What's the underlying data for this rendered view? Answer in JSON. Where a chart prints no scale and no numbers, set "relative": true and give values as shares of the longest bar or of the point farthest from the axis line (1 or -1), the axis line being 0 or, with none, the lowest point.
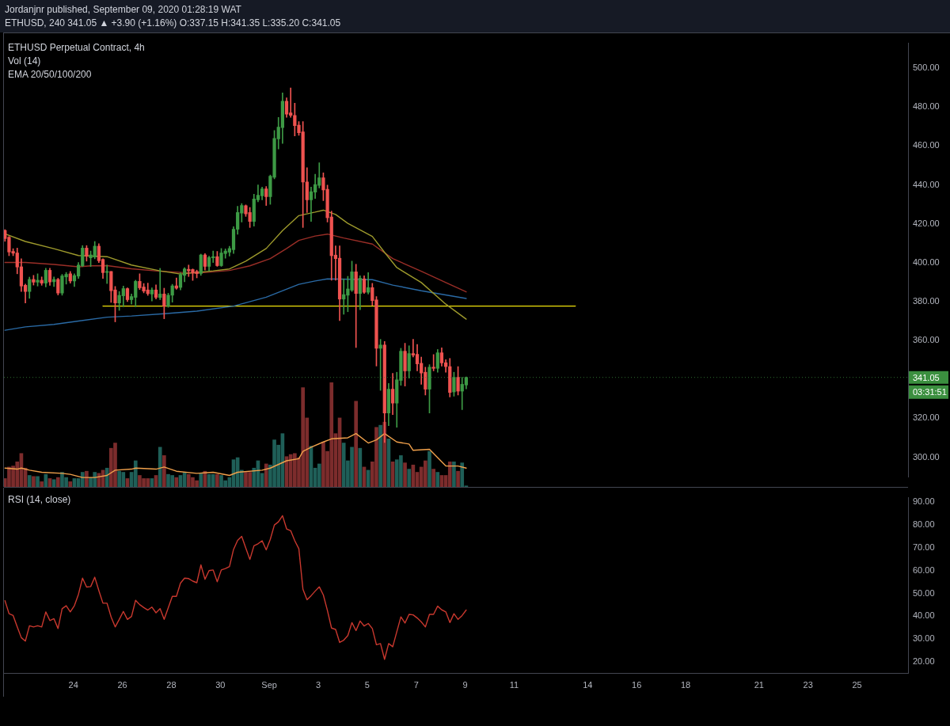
{
  "chart_data": [
    {
      "type": "candlestick",
      "title": "Jordanjnr published, September 09, 2020 01:28:19 WAT",
      "subtitle": "ETHUSD, 240 341.05 ▲ +3.90 (+1.16%) O:337.15 H:341.35 L:335.20 C:341.05",
      "x": [
        "2020-08-21T05:00",
        "2020-08-21T09:00",
        "2020-08-21T13:00",
        "2020-08-21T17:00",
        "2020-08-21T21:00",
        "2020-08-22T01:00",
        "2020-08-22T05:00",
        "2020-08-22T09:00",
        "2020-08-22T13:00",
        "2020-08-22T17:00",
        "2020-08-22T21:00",
        "2020-08-23T01:00",
        "2020-08-23T05:00",
        "2020-08-23T09:00",
        "2020-08-23T13:00",
        "2020-08-23T17:00",
        "2020-08-23T21:00",
        "2020-08-24T01:00",
        "2020-08-24T05:00",
        "2020-08-24T09:00",
        "2020-08-24T13:00",
        "2020-08-24T17:00",
        "2020-08-24T21:00",
        "2020-08-25T01:00",
        "2020-08-25T05:00",
        "2020-08-25T09:00",
        "2020-08-25T13:00",
        "2020-08-25T17:00",
        "2020-08-25T21:00",
        "2020-08-26T01:00",
        "2020-08-26T05:00",
        "2020-08-26T09:00",
        "2020-08-26T13:00",
        "2020-08-26T17:00",
        "2020-08-26T21:00",
        "2020-08-27T01:00",
        "2020-08-27T05:00",
        "2020-08-27T09:00",
        "2020-08-27T13:00",
        "2020-08-27T17:00",
        "2020-08-27T21:00",
        "2020-08-28T01:00",
        "2020-08-28T05:00",
        "2020-08-28T09:00",
        "2020-08-28T13:00",
        "2020-08-28T17:00",
        "2020-08-28T21:00",
        "2020-08-29T01:00",
        "2020-08-29T05:00",
        "2020-08-29T09:00",
        "2020-08-29T13:00",
        "2020-08-29T17:00",
        "2020-08-29T21:00",
        "2020-08-30T01:00",
        "2020-08-30T05:00",
        "2020-08-30T09:00",
        "2020-08-30T13:00",
        "2020-08-30T17:00",
        "2020-08-30T21:00",
        "2020-08-31T01:00",
        "2020-08-31T05:00",
        "2020-08-31T09:00",
        "2020-08-31T13:00",
        "2020-08-31T17:00",
        "2020-08-31T21:00",
        "2020-09-01T01:00",
        "2020-09-01T05:00",
        "2020-09-01T09:00",
        "2020-09-01T13:00",
        "2020-09-01T17:00",
        "2020-09-01T21:00",
        "2020-09-02T01:00",
        "2020-09-02T05:00",
        "2020-09-02T09:00",
        "2020-09-02T13:00",
        "2020-09-02T17:00",
        "2020-09-02T21:00",
        "2020-09-03T01:00",
        "2020-09-03T05:00",
        "2020-09-03T09:00",
        "2020-09-03T13:00",
        "2020-09-03T17:00",
        "2020-09-03T21:00",
        "2020-09-04T01:00",
        "2020-09-04T05:00",
        "2020-09-04T09:00",
        "2020-09-04T13:00",
        "2020-09-04T17:00",
        "2020-09-04T21:00",
        "2020-09-05T01:00",
        "2020-09-05T05:00",
        "2020-09-05T09:00",
        "2020-09-05T13:00",
        "2020-09-05T17:00",
        "2020-09-05T21:00",
        "2020-09-06T01:00",
        "2020-09-06T05:00",
        "2020-09-06T09:00",
        "2020-09-06T13:00",
        "2020-09-06T17:00",
        "2020-09-06T21:00",
        "2020-09-07T01:00",
        "2020-09-07T05:00",
        "2020-09-07T09:00",
        "2020-09-07T13:00",
        "2020-09-07T17:00",
        "2020-09-07T21:00",
        "2020-09-08T01:00",
        "2020-09-08T05:00",
        "2020-09-08T09:00",
        "2020-09-08T13:00",
        "2020-09-08T17:00",
        "2020-09-08T21:00",
        "2020-09-09T01:00"
      ],
      "ohlc": [
        [
          416.6,
          417.0,
          411.0,
          412.4
        ],
        [
          413.1,
          413.5,
          403.6,
          405.5
        ],
        [
          405.8,
          407.2,
          403.6,
          404.9
        ],
        [
          405.0,
          407.5,
          394.3,
          397.8
        ],
        [
          397.9,
          402.0,
          385.2,
          388.0
        ],
        [
          388.4,
          389.0,
          379.3,
          385.2
        ],
        [
          385.2,
          392.6,
          381.7,
          391.4
        ],
        [
          391.4,
          393.5,
          388.5,
          390.0
        ],
        [
          390.0,
          394.3,
          388.0,
          391.0
        ],
        [
          391.0,
          392.7,
          388.4,
          389.5
        ],
        [
          389.5,
          397.1,
          387.5,
          396.1
        ],
        [
          396.1,
          397.1,
          388.4,
          390.1
        ],
        [
          390.2,
          392.7,
          387.8,
          391.4
        ],
        [
          391.4,
          392.0,
          383.4,
          384.4
        ],
        [
          384.4,
          394.0,
          383.3,
          393.2
        ],
        [
          392.7,
          395.0,
          389.0,
          394.0
        ],
        [
          394.3,
          395.5,
          389.5,
          390.6
        ],
        [
          390.6,
          394.3,
          387.8,
          393.4
        ],
        [
          393.1,
          400.1,
          391.9,
          398.8
        ],
        [
          398.4,
          408.8,
          398.0,
          407.5
        ],
        [
          407.5,
          408.8,
          400.8,
          403.3
        ],
        [
          402.5,
          406.0,
          398.0,
          404.0
        ],
        [
          402.9,
          410.9,
          402.0,
          408.5
        ],
        [
          408.5,
          409.8,
          400.1,
          401.0
        ],
        [
          401.7,
          402.0,
          391.9,
          394.9
        ],
        [
          395.0,
          398.8,
          389.3,
          395.5
        ],
        [
          395.5,
          395.5,
          379.6,
          385.6
        ],
        [
          386.0,
          387.8,
          369.6,
          379.3
        ],
        [
          379.3,
          385.2,
          375.5,
          383.2
        ],
        [
          383.0,
          388.0,
          377.4,
          386.7
        ],
        [
          386.7,
          387.1,
          380.0,
          381.0
        ],
        [
          381.0,
          383.9,
          378.7,
          382.6
        ],
        [
          382.2,
          391.0,
          377.4,
          390.4
        ],
        [
          390.4,
          394.3,
          386.2,
          387.1
        ],
        [
          387.5,
          389.3,
          384.5,
          385.4
        ],
        [
          386.0,
          389.5,
          383.2,
          384.1
        ],
        [
          383.9,
          387.1,
          380.3,
          386.0
        ],
        [
          386.0,
          388.6,
          381.3,
          382.2
        ],
        [
          382.1,
          397.1,
          381.0,
          383.9
        ],
        [
          383.9,
          386.9,
          371.2,
          377.7
        ],
        [
          377.7,
          384.3,
          377.1,
          383.3
        ],
        [
          383.3,
          388.9,
          379.7,
          388.1
        ],
        [
          388.1,
          392.2,
          386.3,
          386.9
        ],
        [
          387.3,
          394.8,
          386.0,
          393.8
        ],
        [
          393.5,
          397.5,
          390.2,
          396.8
        ],
        [
          396.6,
          398.8,
          392.9,
          395.8
        ],
        [
          396.5,
          396.8,
          390.9,
          394.8
        ],
        [
          395.5,
          396.2,
          392.2,
          394.4
        ],
        [
          394.5,
          404.4,
          393.5,
          404.0
        ],
        [
          404.0,
          404.7,
          396.2,
          398.1
        ],
        [
          398.1,
          403.4,
          395.8,
          402.7
        ],
        [
          402.5,
          406.0,
          400.1,
          403.1
        ],
        [
          403.1,
          405.8,
          398.1,
          398.5
        ],
        [
          398.5,
          407.3,
          398.1,
          405.0
        ],
        [
          404.7,
          407.1,
          402.3,
          406.0
        ],
        [
          405.4,
          408.4,
          403.4,
          407.3
        ],
        [
          406.7,
          418.5,
          404.7,
          417.2
        ],
        [
          417.2,
          429.0,
          414.6,
          425.8
        ],
        [
          425.5,
          430.4,
          420.9,
          429.4
        ],
        [
          429.3,
          429.7,
          423.8,
          425.1
        ],
        [
          425.8,
          428.4,
          418.1,
          421.2
        ],
        [
          421.2,
          435.2,
          418.8,
          432.7
        ],
        [
          432.3,
          440.0,
          431.3,
          434.7
        ],
        [
          434.3,
          438.9,
          432.3,
          437.9
        ],
        [
          437.9,
          439.2,
          429.4,
          433.9
        ],
        [
          433.9,
          445.1,
          430.0,
          444.4
        ],
        [
          443.9,
          467.9,
          443.1,
          463.9
        ],
        [
          463.6,
          474.7,
          458.4,
          469.7
        ],
        [
          469.4,
          487.3,
          461.3,
          483.0
        ],
        [
          483.0,
          484.7,
          474.7,
          476.4
        ],
        [
          477.0,
          489.8,
          474.7,
          475.7
        ],
        [
          475.7,
          482.0,
          465.2,
          470.5
        ],
        [
          470.7,
          472.5,
          465.5,
          466.8
        ],
        [
          467.2,
          472.5,
          418.1,
          441.5
        ],
        [
          441.5,
          448.8,
          425.8,
          432.3
        ],
        [
          432.3,
          438.9,
          421.2,
          436.5
        ],
        [
          436.3,
          445.5,
          433.0,
          440.2
        ],
        [
          439.7,
          451.4,
          438.4,
          443.6
        ],
        [
          443.6,
          446.2,
          431.9,
          437.4
        ],
        [
          437.7,
          439.9,
          420.9,
          423.1
        ],
        [
          423.5,
          426.5,
          391.0,
          403.6
        ],
        [
          403.9,
          408.6,
          391.0,
          402.1
        ],
        [
          402.3,
          408.6,
          370.3,
          381.3
        ],
        [
          381.3,
          391.7,
          373.5,
          383.6
        ],
        [
          383.3,
          393.0,
          374.8,
          386.5
        ],
        [
          385.9,
          400.8,
          385.2,
          395.3
        ],
        [
          395.3,
          399.2,
          356.4,
          384.2
        ],
        [
          384.2,
          393.3,
          375.9,
          392.0
        ],
        [
          391.7,
          393.3,
          384.2,
          384.8
        ],
        [
          384.8,
          394.9,
          383.9,
          387.2
        ],
        [
          387.2,
          389.4,
          378.1,
          380.5
        ],
        [
          380.9,
          382.6,
          346.9,
          356.0
        ],
        [
          356.0,
          360.6,
          334.4,
          357.7
        ],
        [
          357.7,
          359.5,
          307.6,
          322.7
        ],
        [
          322.7,
          337.9,
          316.2,
          335.0
        ],
        [
          335.0,
          343.1,
          321.9,
          327.8
        ],
        [
          327.8,
          343.7,
          315.4,
          339.8
        ],
        [
          339.5,
          356.0,
          337.0,
          354.5
        ],
        [
          354.5,
          358.6,
          336.6,
          344.4
        ],
        [
          344.4,
          357.3,
          340.7,
          353.3
        ],
        [
          353.3,
          360.6,
          351.5,
          352.5
        ],
        [
          352.9,
          358.0,
          344.4,
          348.0
        ],
        [
          348.3,
          351.5,
          337.5,
          343.3
        ],
        [
          343.7,
          346.3,
          332.0,
          335.0
        ],
        [
          335.0,
          347.6,
          322.7,
          346.3
        ],
        [
          346.3,
          352.8,
          344.4,
          345.7
        ],
        [
          345.7,
          355.4,
          343.7,
          353.7
        ],
        [
          353.7,
          356.3,
          346.9,
          348.5
        ],
        [
          348.6,
          350.2,
          343.7,
          346.6
        ],
        [
          346.6,
          350.8,
          331.0,
          333.3
        ],
        [
          333.6,
          343.7,
          331.4,
          341.1
        ],
        [
          341.1,
          346.6,
          332.0,
          334.0
        ],
        [
          334.0,
          341.1,
          324.5,
          337.5
        ],
        [
          337.15,
          341.35,
          335.2,
          341.05
        ]
      ],
      "colors": [
        "#ef5350",
        "#ef5350",
        "#ef5350",
        "#ef5350",
        "#ef5350",
        "#ef5350",
        "#3d9a45",
        "#ef5350",
        "#3d9a45",
        "#ef5350",
        "#3d9a45",
        "#ef5350",
        "#3d9a45",
        "#ef5350",
        "#3d9a45",
        "#3d9a45",
        "#ef5350",
        "#3d9a45",
        "#3d9a45",
        "#3d9a45",
        "#ef5350",
        "#3d9a45",
        "#3d9a45",
        "#ef5350",
        "#ef5350",
        "#3d9a45",
        "#ef5350",
        "#ef5350",
        "#3d9a45",
        "#3d9a45",
        "#ef5350",
        "#3d9a45",
        "#3d9a45",
        "#ef5350",
        "#ef5350",
        "#ef5350",
        "#3d9a45",
        "#ef5350",
        "#3d9a45",
        "#ef5350",
        "#3d9a45",
        "#3d9a45",
        "#ef5350",
        "#3d9a45",
        "#3d9a45",
        "#ef5350",
        "#ef5350",
        "#ef5350",
        "#3d9a45",
        "#ef5350",
        "#3d9a45",
        "#3d9a45",
        "#ef5350",
        "#3d9a45",
        "#3d9a45",
        "#3d9a45",
        "#3d9a45",
        "#3d9a45",
        "#3d9a45",
        "#ef5350",
        "#ef5350",
        "#3d9a45",
        "#3d9a45",
        "#3d9a45",
        "#ef5350",
        "#3d9a45",
        "#3d9a45",
        "#3d9a45",
        "#3d9a45",
        "#ef5350",
        "#ef5350",
        "#ef5350",
        "#ef5350",
        "#ef5350",
        "#ef5350",
        "#3d9a45",
        "#3d9a45",
        "#3d9a45",
        "#ef5350",
        "#ef5350",
        "#ef5350",
        "#ef5350",
        "#ef5350",
        "#3d9a45",
        "#3d9a45",
        "#3d9a45",
        "#ef5350",
        "#3d9a45",
        "#ef5350",
        "#3d9a45",
        "#ef5350",
        "#ef5350",
        "#3d9a45",
        "#ef5350",
        "#3d9a45",
        "#ef5350",
        "#3d9a45",
        "#3d9a45",
        "#ef5350",
        "#3d9a45",
        "#ef5350",
        "#ef5350",
        "#ef5350",
        "#ef5350",
        "#3d9a45",
        "#ef5350",
        "#3d9a45",
        "#ef5350",
        "#ef5350",
        "#ef5350",
        "#3d9a45",
        "#ef5350",
        "#3d9a45",
        "#3d9a45"
      ],
      "series": [
        {
          "type": "line",
          "color": "#9e9a2c",
          "x": [
            "2020-08-21T05:00",
            "2020-08-22T01:00",
            "2020-08-23T05:00",
            "2020-08-24T05:00",
            "2020-08-25T09:00",
            "2020-08-26T09:00",
            "2020-08-27T13:00",
            "2020-08-28T09:00",
            "2020-08-29T17:00",
            "2020-08-30T09:00",
            "2020-08-31T01:00",
            "2020-08-31T21:00",
            "2020-09-01T13:00",
            "2020-09-02T05:00",
            "2020-09-02T21:00",
            "2020-09-03T05:00",
            "2020-09-03T17:00",
            "2020-09-04T05:00",
            "2020-09-05T05:00",
            "2020-09-05T17:00",
            "2020-09-06T05:00",
            "2020-09-07T05:00",
            "2020-09-08T05:00",
            "2020-09-09T01:00"
          ],
          "values": [
            414.8,
            410.9,
            407.2,
            403.7,
            403.1,
            398.8,
            395.8,
            394.2,
            395.8,
            396.8,
            400.8,
            407.3,
            416.5,
            424.2,
            426.0,
            427.0,
            424.8,
            420.2,
            413.5,
            405.3,
            397.5,
            389.8,
            378.7,
            371.0
          ]
        },
        {
          "type": "line",
          "color": "#9a2e27",
          "x": [
            "2020-08-21T05:00",
            "2020-08-22T01:00",
            "2020-08-23T05:00",
            "2020-08-24T05:00",
            "2020-08-24T17:00",
            "2020-08-25T09:00",
            "2020-08-26T09:00",
            "2020-08-27T13:00",
            "2020-08-29T01:00",
            "2020-08-30T09:00",
            "2020-08-31T05:00",
            "2020-09-01T01:00",
            "2020-09-01T17:00",
            "2020-09-02T05:00",
            "2020-09-02T21:00",
            "2020-09-03T09:00",
            "2020-09-04T01:00",
            "2020-09-05T05:00",
            "2020-09-06T01:00",
            "2020-09-07T05:00",
            "2020-09-08T05:00",
            "2020-09-09T01:00"
          ],
          "values": [
            400.1,
            400.1,
            399.1,
            397.9,
            398.4,
            398.5,
            396.9,
            395.6,
            394.6,
            396.0,
            398.4,
            402.1,
            407.3,
            411.5,
            413.7,
            414.7,
            412.7,
            409.6,
            402.1,
            395.6,
            389.8,
            385.0
          ]
        },
        {
          "type": "line",
          "color": "#2a6aa5",
          "x": [
            "2020-08-21T05:00",
            "2020-08-22T01:00",
            "2020-08-23T05:00",
            "2020-08-24T05:00",
            "2020-08-25T09:00",
            "2020-08-26T09:00",
            "2020-08-27T17:00",
            "2020-08-29T01:00",
            "2020-08-30T13:00",
            "2020-08-31T21:00",
            "2020-09-02T05:00",
            "2020-09-02T21:00",
            "2020-09-03T09:00",
            "2020-09-05T05:00",
            "2020-09-06T01:00",
            "2020-09-07T05:00",
            "2020-09-09T01:00"
          ],
          "values": [
            365.3,
            367.0,
            368.3,
            370.0,
            372.0,
            372.6,
            373.8,
            375.1,
            377.7,
            382.3,
            388.9,
            390.6,
            391.7,
            391.3,
            388.5,
            385.6,
            381.6
          ]
        },
        {
          "type": "line",
          "color": "#f0e20a",
          "x": [
            "2020-08-25T05:00",
            "2020-09-13T12:00"
          ],
          "values": [
            377.7,
            377.7
          ]
        }
      ],
      "xlim": [
        "2020-08-21T04:00",
        "2020-09-27T02:00"
      ],
      "ylim": [
        289.9,
        512.8
      ],
      "yticks": [
        {
          "value": 300,
          "label": "300.00"
        },
        {
          "value": 320,
          "label": "320.00"
        },
        {
          "value": 360,
          "label": "360.00"
        },
        {
          "value": 380,
          "label": "380.00"
        },
        {
          "value": 400,
          "label": "400.00"
        },
        {
          "value": 420,
          "label": "420.00"
        },
        {
          "value": 440,
          "label": "440.00"
        },
        {
          "value": 460,
          "label": "460.00"
        },
        {
          "value": 480,
          "label": "480.00"
        },
        {
          "value": 500,
          "label": "500.00"
        }
      ],
      "ref_lines": [
        {
          "axis": "y",
          "value": 341.05,
          "label": "341.05",
          "color": "#3b8f3f",
          "line_style": "dotted"
        }
      ],
      "annotations": [
        "ETHUSD Perpetual Contract, 4h",
        "EMA 20/50/100/200",
        "03:31:51"
      ],
      "tick_labels": "y"
    },
    {
      "type": "bar",
      "title": "Vol (14)",
      "relative": true,
      "x": [
        "2020-08-21T05:00",
        "2020-08-21T09:00",
        "2020-08-21T13:00",
        "2020-08-21T17:00",
        "2020-08-21T21:00",
        "2020-08-22T01:00",
        "2020-08-22T05:00",
        "2020-08-22T09:00",
        "2020-08-22T13:00",
        "2020-08-22T17:00",
        "2020-08-22T21:00",
        "2020-08-23T01:00",
        "2020-08-23T05:00",
        "2020-08-23T09:00",
        "2020-08-23T13:00",
        "2020-08-23T17:00",
        "2020-08-23T21:00",
        "2020-08-24T01:00",
        "2020-08-24T05:00",
        "2020-08-24T09:00",
        "2020-08-24T13:00",
        "2020-08-24T17:00",
        "2020-08-24T21:00",
        "2020-08-25T01:00",
        "2020-08-25T05:00",
        "2020-08-25T09:00",
        "2020-08-25T13:00",
        "2020-08-25T17:00",
        "2020-08-25T21:00",
        "2020-08-26T01:00",
        "2020-08-26T05:00",
        "2020-08-26T09:00",
        "2020-08-26T13:00",
        "2020-08-26T17:00",
        "2020-08-26T21:00",
        "2020-08-27T01:00",
        "2020-08-27T05:00",
        "2020-08-27T09:00",
        "2020-08-27T13:00",
        "2020-08-27T17:00",
        "2020-08-27T21:00",
        "2020-08-28T01:00",
        "2020-08-28T05:00",
        "2020-08-28T09:00",
        "2020-08-28T13:00",
        "2020-08-28T17:00",
        "2020-08-28T21:00",
        "2020-08-29T01:00",
        "2020-08-29T05:00",
        "2020-08-29T09:00",
        "2020-08-29T13:00",
        "2020-08-29T17:00",
        "2020-08-29T21:00",
        "2020-08-30T01:00",
        "2020-08-30T05:00",
        "2020-08-30T09:00",
        "2020-08-30T13:00",
        "2020-08-30T17:00",
        "2020-08-30T21:00",
        "2020-08-31T01:00",
        "2020-08-31T05:00",
        "2020-08-31T09:00",
        "2020-08-31T13:00",
        "2020-08-31T17:00",
        "2020-08-31T21:00",
        "2020-09-01T01:00",
        "2020-09-01T05:00",
        "2020-09-01T09:00",
        "2020-09-01T13:00",
        "2020-09-01T17:00",
        "2020-09-01T21:00",
        "2020-09-02T01:00",
        "2020-09-02T05:00",
        "2020-09-02T09:00",
        "2020-09-02T13:00",
        "2020-09-02T17:00",
        "2020-09-02T21:00",
        "2020-09-03T01:00",
        "2020-09-03T05:00",
        "2020-09-03T09:00",
        "2020-09-03T13:00",
        "2020-09-03T17:00",
        "2020-09-03T21:00",
        "2020-09-04T01:00",
        "2020-09-04T05:00",
        "2020-09-04T09:00",
        "2020-09-04T13:00",
        "2020-09-04T17:00",
        "2020-09-04T21:00",
        "2020-09-05T01:00",
        "2020-09-05T05:00",
        "2020-09-05T09:00",
        "2020-09-05T13:00",
        "2020-09-05T17:00",
        "2020-09-05T21:00",
        "2020-09-06T01:00",
        "2020-09-06T05:00",
        "2020-09-06T09:00",
        "2020-09-06T13:00",
        "2020-09-06T17:00",
        "2020-09-06T21:00",
        "2020-09-07T01:00",
        "2020-09-07T05:00",
        "2020-09-07T09:00",
        "2020-09-07T13:00",
        "2020-09-07T17:00",
        "2020-09-07T21:00",
        "2020-09-08T01:00",
        "2020-09-08T05:00",
        "2020-09-08T09:00",
        "2020-09-08T13:00",
        "2020-09-08T17:00",
        "2020-09-08T21:00",
        "2020-09-09T01:00"
      ],
      "series": [
        {
          "values": [
            0.08,
            0.19,
            0.2,
            0.24,
            0.32,
            0.18,
            0.11,
            0.1,
            0.1,
            0.05,
            0.12,
            0.08,
            0.07,
            0.09,
            0.14,
            0.09,
            0.05,
            0.08,
            0.08,
            0.14,
            0.15,
            0.09,
            0.14,
            0.13,
            0.16,
            0.18,
            0.37,
            0.42,
            0.15,
            0.14,
            0.08,
            0.14,
            0.25,
            0.11,
            0.08,
            0.08,
            0.08,
            0.11,
            0.38,
            0.3,
            0.12,
            0.11,
            0.09,
            0.11,
            0.14,
            0.12,
            0.09,
            0.06,
            0.13,
            0.15,
            0.12,
            0.12,
            0.12,
            0.11,
            0.06,
            0.09,
            0.26,
            0.28,
            0.16,
            0.14,
            0.14,
            0.18,
            0.25,
            0.13,
            0.22,
            0.21,
            0.45,
            0.4,
            0.51,
            0.29,
            0.31,
            0.32,
            0.28,
            0.95,
            0.66,
            0.39,
            0.18,
            0.22,
            0.43,
            0.34,
            1,
            0.51,
            0.66,
            0.42,
            0.25,
            0.38,
            0.82,
            0.37,
            0.19,
            0.16,
            0.24,
            0.57,
            0.59,
            0.62,
            0.46,
            0.24,
            0.26,
            0.3,
            0.23,
            0.17,
            0.21,
            0.14,
            0.19,
            0.25,
            0.34,
            0.17,
            0.14,
            0.11,
            0.11,
            0.24,
            0.24,
            0.15,
            0.23,
            0.01
          ],
          "colors": [
            "#7c2c2c",
            "#7c2c2c",
            "#7c2c2c",
            "#7c2c2c",
            "#7c2c2c",
            "#7c2c2c",
            "#1f5f58",
            "#7c2c2c",
            "#1f5f58",
            "#7c2c2c",
            "#1f5f58",
            "#7c2c2c",
            "#1f5f58",
            "#7c2c2c",
            "#1f5f58",
            "#1f5f58",
            "#7c2c2c",
            "#1f5f58",
            "#1f5f58",
            "#1f5f58",
            "#7c2c2c",
            "#1f5f58",
            "#1f5f58",
            "#7c2c2c",
            "#7c2c2c",
            "#1f5f58",
            "#7c2c2c",
            "#7c2c2c",
            "#1f5f58",
            "#1f5f58",
            "#7c2c2c",
            "#1f5f58",
            "#1f5f58",
            "#7c2c2c",
            "#7c2c2c",
            "#7c2c2c",
            "#1f5f58",
            "#7c2c2c",
            "#1f5f58",
            "#7c2c2c",
            "#1f5f58",
            "#1f5f58",
            "#7c2c2c",
            "#1f5f58",
            "#1f5f58",
            "#7c2c2c",
            "#7c2c2c",
            "#7c2c2c",
            "#1f5f58",
            "#7c2c2c",
            "#1f5f58",
            "#1f5f58",
            "#7c2c2c",
            "#1f5f58",
            "#1f5f58",
            "#1f5f58",
            "#1f5f58",
            "#1f5f58",
            "#1f5f58",
            "#7c2c2c",
            "#7c2c2c",
            "#1f5f58",
            "#1f5f58",
            "#1f5f58",
            "#7c2c2c",
            "#1f5f58",
            "#1f5f58",
            "#1f5f58",
            "#1f5f58",
            "#7c2c2c",
            "#7c2c2c",
            "#7c2c2c",
            "#7c2c2c",
            "#7c2c2c",
            "#7c2c2c",
            "#1f5f58",
            "#1f5f58",
            "#1f5f58",
            "#7c2c2c",
            "#7c2c2c",
            "#7c2c2c",
            "#7c2c2c",
            "#7c2c2c",
            "#1f5f58",
            "#1f5f58",
            "#1f5f58",
            "#7c2c2c",
            "#1f5f58",
            "#7c2c2c",
            "#1f5f58",
            "#7c2c2c",
            "#7c2c2c",
            "#1f5f58",
            "#7c2c2c",
            "#1f5f58",
            "#7c2c2c",
            "#1f5f58",
            "#1f5f58",
            "#7c2c2c",
            "#1f5f58",
            "#7c2c2c",
            "#7c2c2c",
            "#7c2c2c",
            "#7c2c2c",
            "#1f5f58",
            "#7c2c2c",
            "#1f5f58",
            "#7c2c2c",
            "#7c2c2c",
            "#7c2c2c",
            "#1f5f58",
            "#7c2c2c",
            "#1f5f58",
            "#1f5f58"
          ]
        },
        {
          "type": "line",
          "color": "#f0a04b",
          "x": [
            "2020-08-21T05:00",
            "2020-08-21T17:00",
            "2020-08-21T21:00",
            "2020-08-22T05:00",
            "2020-08-22T17:00",
            "2020-08-23T13:00",
            "2020-08-23T21:00",
            "2020-08-24T09:00",
            "2020-08-24T21:00",
            "2020-08-25T09:00",
            "2020-08-25T17:00",
            "2020-08-26T09:00",
            "2020-08-26T13:00",
            "2020-08-27T09:00",
            "2020-08-27T17:00",
            "2020-08-28T05:00",
            "2020-08-29T01:00",
            "2020-08-29T17:00",
            "2020-08-30T09:00",
            "2020-08-30T17:00",
            "2020-08-31T17:00",
            "2020-09-01T01:00",
            "2020-09-01T17:00",
            "2020-09-02T05:00",
            "2020-09-02T09:00",
            "2020-09-02T17:00",
            "2020-09-03T05:00",
            "2020-09-03T13:00",
            "2020-09-04T05:00",
            "2020-09-04T13:00",
            "2020-09-05T01:00",
            "2020-09-05T09:00",
            "2020-09-05T17:00",
            "2020-09-06T05:00",
            "2020-09-06T17:00",
            "2020-09-06T21:00",
            "2020-09-07T13:00",
            "2020-09-07T21:00",
            "2020-09-08T05:00",
            "2020-09-08T17:00",
            "2020-09-09T01:00"
          ],
          "values": [
            0.18,
            0.17,
            0.18,
            0.16,
            0.14,
            0.13,
            0.12,
            0.09,
            0.09,
            0.11,
            0.16,
            0.17,
            0.18,
            0.17,
            0.19,
            0.15,
            0.13,
            0.14,
            0.11,
            0.14,
            0.16,
            0.18,
            0.25,
            0.27,
            0.34,
            0.38,
            0.43,
            0.46,
            0.47,
            0.51,
            0.42,
            0.45,
            0.51,
            0.43,
            0.41,
            0.35,
            0.36,
            0.28,
            0.2,
            0.2,
            0.18
          ]
        }
      ],
      "xlim": [
        "2020-08-21T04:00",
        "2020-09-27T02:00"
      ],
      "tick_labels": false
    },
    {
      "type": "line",
      "title": "RSI (14, close)",
      "x": [
        "2020-08-21T05:00",
        "2020-08-21T09:00",
        "2020-08-21T13:00",
        "2020-08-21T17:00",
        "2020-08-21T21:00",
        "2020-08-22T01:00",
        "2020-08-22T05:00",
        "2020-08-22T09:00",
        "2020-08-22T13:00",
        "2020-08-22T17:00",
        "2020-08-22T21:00",
        "2020-08-23T01:00",
        "2020-08-23T05:00",
        "2020-08-23T09:00",
        "2020-08-23T13:00",
        "2020-08-23T17:00",
        "2020-08-23T21:00",
        "2020-08-24T01:00",
        "2020-08-24T05:00",
        "2020-08-24T09:00",
        "2020-08-24T13:00",
        "2020-08-24T17:00",
        "2020-08-24T21:00",
        "2020-08-25T01:00",
        "2020-08-25T05:00",
        "2020-08-25T09:00",
        "2020-08-25T13:00",
        "2020-08-25T17:00",
        "2020-08-25T21:00",
        "2020-08-26T01:00",
        "2020-08-26T05:00",
        "2020-08-26T09:00",
        "2020-08-26T13:00",
        "2020-08-26T17:00",
        "2020-08-26T21:00",
        "2020-08-27T01:00",
        "2020-08-27T05:00",
        "2020-08-27T09:00",
        "2020-08-27T13:00",
        "2020-08-27T17:00",
        "2020-08-27T21:00",
        "2020-08-28T01:00",
        "2020-08-28T05:00",
        "2020-08-28T09:00",
        "2020-08-28T13:00",
        "2020-08-28T17:00",
        "2020-08-28T21:00",
        "2020-08-29T01:00",
        "2020-08-29T05:00",
        "2020-08-29T09:00",
        "2020-08-29T13:00",
        "2020-08-29T17:00",
        "2020-08-29T21:00",
        "2020-08-30T01:00",
        "2020-08-30T05:00",
        "2020-08-30T09:00",
        "2020-08-30T13:00",
        "2020-08-30T17:00",
        "2020-08-30T21:00",
        "2020-08-31T01:00",
        "2020-08-31T05:00",
        "2020-08-31T09:00",
        "2020-08-31T13:00",
        "2020-08-31T17:00",
        "2020-08-31T21:00",
        "2020-09-01T01:00",
        "2020-09-01T05:00",
        "2020-09-01T09:00",
        "2020-09-01T13:00",
        "2020-09-01T17:00",
        "2020-09-01T21:00",
        "2020-09-02T01:00",
        "2020-09-02T05:00",
        "2020-09-02T09:00",
        "2020-09-02T13:00",
        "2020-09-02T17:00",
        "2020-09-02T21:00",
        "2020-09-03T01:00",
        "2020-09-03T05:00",
        "2020-09-03T09:00",
        "2020-09-03T13:00",
        "2020-09-03T17:00",
        "2020-09-03T21:00",
        "2020-09-04T01:00",
        "2020-09-04T05:00",
        "2020-09-04T09:00",
        "2020-09-04T13:00",
        "2020-09-04T17:00",
        "2020-09-04T21:00",
        "2020-09-05T01:00",
        "2020-09-05T05:00",
        "2020-09-05T09:00",
        "2020-09-05T13:00",
        "2020-09-05T17:00",
        "2020-09-05T21:00",
        "2020-09-06T01:00",
        "2020-09-06T05:00",
        "2020-09-06T09:00",
        "2020-09-06T13:00",
        "2020-09-06T17:00",
        "2020-09-06T21:00",
        "2020-09-07T01:00",
        "2020-09-07T05:00",
        "2020-09-07T09:00",
        "2020-09-07T13:00",
        "2020-09-07T17:00",
        "2020-09-07T21:00",
        "2020-09-08T01:00",
        "2020-09-08T05:00",
        "2020-09-08T09:00",
        "2020-09-08T13:00",
        "2020-09-08T17:00",
        "2020-09-08T21:00",
        "2020-09-09T01:00"
      ],
      "series": [
        {
          "color": "#c9382e",
          "values": [
            46.8,
            41.1,
            40.3,
            35.3,
            30.6,
            29.1,
            35.8,
            35.3,
            35.8,
            35.3,
            41.9,
            38.1,
            38.9,
            34.6,
            43.3,
            44.6,
            41.9,
            44.6,
            49.6,
            56.7,
            52.8,
            53.0,
            57.1,
            51.2,
            45.7,
            45.7,
            39.7,
            35.3,
            38.6,
            42.1,
            38.6,
            39.9,
            47.0,
            45.1,
            43.8,
            42.7,
            44.0,
            41.5,
            43.3,
            38.6,
            43.7,
            48.7,
            48.7,
            54.5,
            56.7,
            56.5,
            55.4,
            54.7,
            62.5,
            56.2,
            60.0,
            60.3,
            55.1,
            60.3,
            60.9,
            61.8,
            69.3,
            73.3,
            75.0,
            69.9,
            64.9,
            70.9,
            71.8,
            73.1,
            69.1,
            73.7,
            80.0,
            81.4,
            84.1,
            78.3,
            77.5,
            73.1,
            69.6,
            51.8,
            47.2,
            49.0,
            51.0,
            52.9,
            49.3,
            42.5,
            34.8,
            34.2,
            28.5,
            29.5,
            31.5,
            37.2,
            33.7,
            37.9,
            35.7,
            36.8,
            34.6,
            27.5,
            28.0,
            21.1,
            28.0,
            26.6,
            33.2,
            39.7,
            37.0,
            40.8,
            40.6,
            39.2,
            37.5,
            35.3,
            40.8,
            40.8,
            44.4,
            42.8,
            41.9,
            37.2,
            41.1,
            38.6,
            40.3,
            42.7
          ]
        }
      ],
      "xlim": [
        "2020-08-21T04:00",
        "2020-09-27T02:00"
      ],
      "xticks": [
        {
          "value": "2020-08-24",
          "label": "24"
        },
        {
          "value": "2020-08-26",
          "label": "26"
        },
        {
          "value": "2020-08-28",
          "label": "28"
        },
        {
          "value": "2020-08-30",
          "label": "30"
        },
        {
          "value": "2020-09-01",
          "label": "Sep"
        },
        {
          "value": "2020-09-03",
          "label": "3"
        },
        {
          "value": "2020-09-05",
          "label": "5"
        },
        {
          "value": "2020-09-07",
          "label": "7"
        },
        {
          "value": "2020-09-09",
          "label": "9"
        },
        {
          "value": "2020-09-11",
          "label": "11"
        },
        {
          "value": "2020-09-14",
          "label": "14"
        },
        {
          "value": "2020-09-16",
          "label": "16"
        },
        {
          "value": "2020-09-18",
          "label": "18"
        },
        {
          "value": "2020-09-21",
          "label": "21"
        },
        {
          "value": "2020-09-23",
          "label": "23"
        },
        {
          "value": "2020-09-25",
          "label": "25"
        }
      ],
      "ylim": [
        15.1,
        92
      ],
      "yticks": [
        {
          "value": 20,
          "label": "20.00"
        },
        {
          "value": 30,
          "label": "30.00"
        },
        {
          "value": 40,
          "label": "40.00"
        },
        {
          "value": 50,
          "label": "50.00"
        },
        {
          "value": 60,
          "label": "60.00"
        },
        {
          "value": 70,
          "label": "70.00"
        },
        {
          "value": 80,
          "label": "80.00"
        },
        {
          "value": 90,
          "label": "90.00"
        }
      ]
    }
  ]
}
